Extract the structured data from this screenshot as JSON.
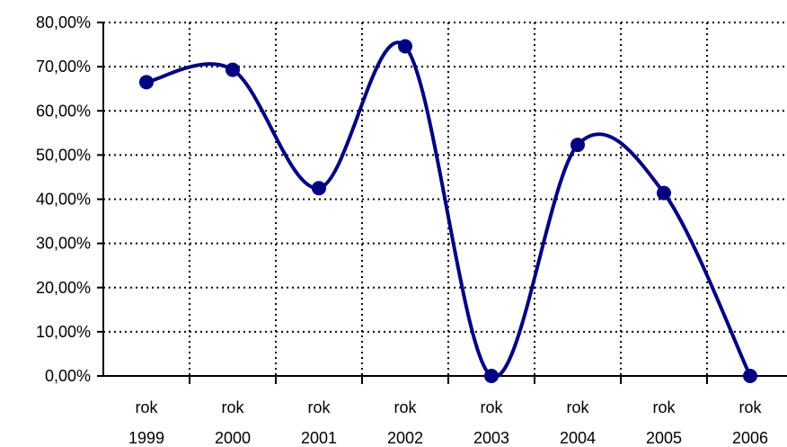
{
  "chart_data": {
    "type": "line",
    "smooth": true,
    "categories": [
      [
        "rok",
        "1999"
      ],
      [
        "rok",
        "2000"
      ],
      [
        "rok",
        "2001"
      ],
      [
        "rok",
        "2002"
      ],
      [
        "rok",
        "2003"
      ],
      [
        "rok",
        "2004"
      ],
      [
        "rok",
        "2005"
      ],
      [
        "rok",
        "2006"
      ]
    ],
    "series": [
      {
        "values": [
          66.5,
          69.3,
          42.5,
          74.6,
          0.0,
          52.3,
          41.4,
          0.0
        ],
        "color": "#000080"
      }
    ],
    "yticks": [
      "0,00%",
      "10,00%",
      "20,00%",
      "30,00%",
      "40,00%",
      "50,00%",
      "60,00%",
      "70,00%",
      "80,00%"
    ],
    "ylim": [
      0,
      80
    ],
    "grid": true,
    "grid_style": "dotted",
    "legend": false,
    "title": "",
    "xlabel": "",
    "ylabel": ""
  }
}
